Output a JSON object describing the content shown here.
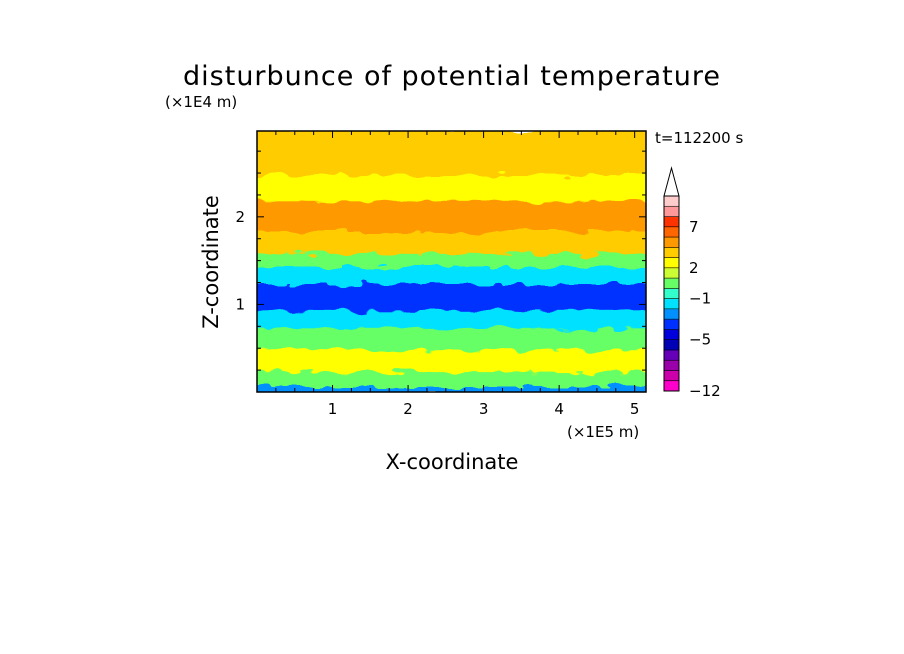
{
  "chart_data": {
    "type": "heatmap",
    "title": "disturbunce of potential temperature",
    "xlabel": "X-coordinate",
    "ylabel": "Z-coordinate",
    "x_unit": "(×1E5 m)",
    "y_unit": "(×1E4 m)",
    "time_label": "t=112200 s",
    "xlim": [
      0,
      5.15
    ],
    "ylim": [
      0,
      2.98
    ],
    "x_ticks": [
      "1",
      "2",
      "3",
      "4",
      "5"
    ],
    "y_ticks": [
      "1",
      "2"
    ],
    "colorbar": {
      "levels": [
        -12,
        -11,
        -10,
        -9,
        -7,
        -5,
        -4,
        -3,
        -2,
        -1,
        0,
        1,
        2,
        3,
        4,
        5,
        7,
        8,
        9,
        10,
        11
      ],
      "tick_labels": [
        "7",
        "2",
        "-1",
        "-5",
        "-12"
      ],
      "tick_values": [
        7,
        2,
        -1,
        -5,
        -12
      ],
      "colors": [
        "#ff00cc",
        "#cc00aa",
        "#9900aa",
        "#6600b8",
        "#0000b4",
        "#0000dd",
        "#0030ff",
        "#0090ff",
        "#00e0ff",
        "#33ffcc",
        "#66ff66",
        "#ccff33",
        "#ffff00",
        "#ffcc00",
        "#ff9900",
        "#ff6600",
        "#ff3300",
        "#ff9999",
        "#ffcccc"
      ],
      "extend_max": true
    },
    "bands": [
      {
        "z": [
          0.0,
          0.08
        ],
        "value": -3
      },
      {
        "z": [
          0.08,
          0.25
        ],
        "value": 0
      },
      {
        "z": [
          0.25,
          0.5
        ],
        "value": 2
      },
      {
        "z": [
          0.5,
          0.75
        ],
        "value": 0
      },
      {
        "z": [
          0.75,
          0.95
        ],
        "value": -2
      },
      {
        "z": [
          0.95,
          1.25
        ],
        "value": -4
      },
      {
        "z": [
          1.25,
          1.45
        ],
        "value": -2
      },
      {
        "z": [
          1.45,
          1.6
        ],
        "value": 0
      },
      {
        "z": [
          1.6,
          1.85
        ],
        "value": 3
      },
      {
        "z": [
          1.85,
          2.2
        ],
        "value": 4
      },
      {
        "z": [
          2.2,
          2.5
        ],
        "value": 2
      },
      {
        "z": [
          2.5,
          2.98
        ],
        "value": 3
      }
    ]
  }
}
